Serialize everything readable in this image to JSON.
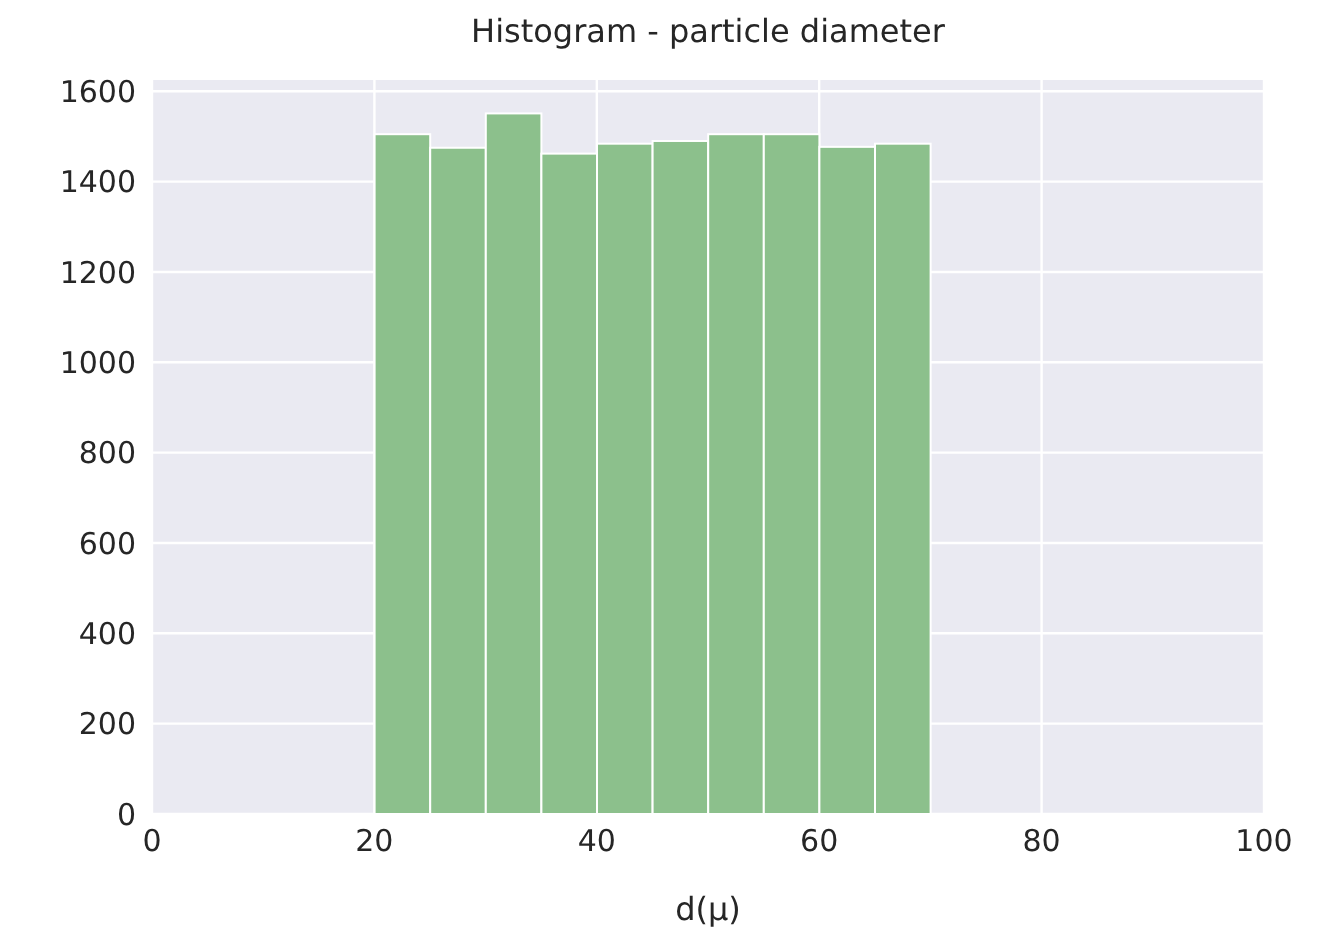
{
  "chart_data": {
    "type": "histogram",
    "title": "Histogram - particle diameter",
    "xlabel": "d(μ)",
    "bins": [
      20,
      25,
      30,
      35,
      40,
      45,
      50,
      55,
      60,
      65,
      70
    ],
    "values": [
      1505,
      1475,
      1551,
      1462,
      1484,
      1490,
      1505,
      1505,
      1477,
      1484
    ],
    "color": "#8cc08c",
    "xlim": [
      0,
      100
    ],
    "xticks": [
      0,
      20,
      40,
      60,
      80,
      100
    ],
    "ylim": [
      0,
      1625
    ],
    "yticks": [
      0,
      200,
      400,
      600,
      800,
      1000,
      1200,
      1400,
      1600
    ],
    "grid": true
  }
}
